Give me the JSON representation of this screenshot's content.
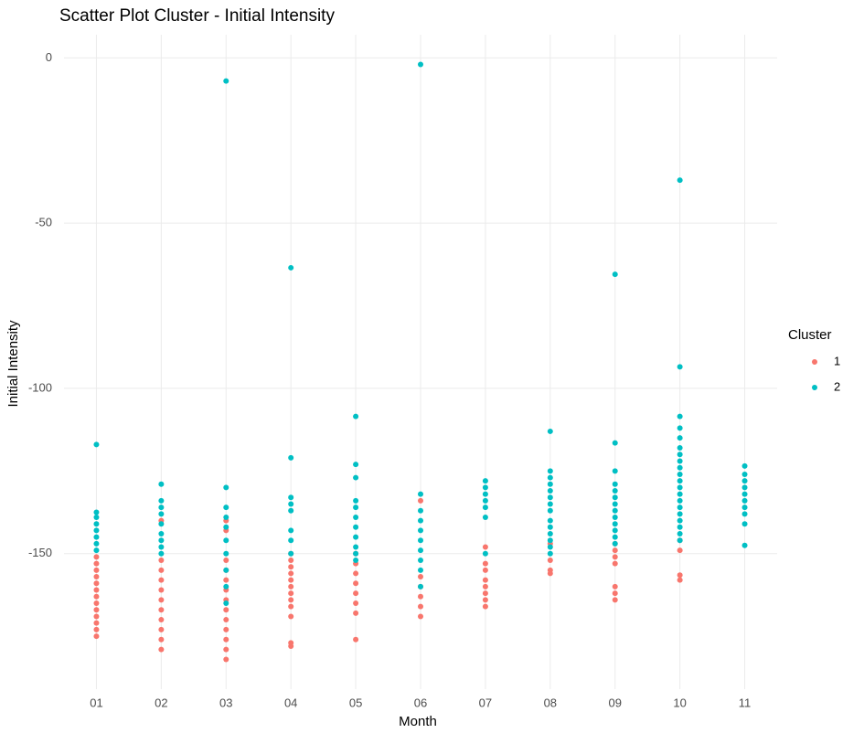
{
  "chart_data": {
    "type": "scatter",
    "title": "Scatter Plot Cluster - Initial Intensity",
    "x_label": "Month",
    "y_label": "Initial Intensity",
    "legend_title": "Cluster",
    "legend_position": "right",
    "grid": true,
    "categories": [
      "01",
      "02",
      "03",
      "04",
      "05",
      "06",
      "07",
      "08",
      "09",
      "10",
      "11"
    ],
    "ylim": [
      -191,
      7
    ],
    "yticks": [
      0,
      -50,
      -100,
      -150
    ],
    "series": [
      {
        "name": "1",
        "color": "#F8766D",
        "x": [
          "01",
          "01",
          "01",
          "01",
          "01",
          "01",
          "01",
          "01",
          "01",
          "01",
          "01",
          "01",
          "01",
          "02",
          "02",
          "02",
          "02",
          "02",
          "02",
          "02",
          "02",
          "02",
          "02",
          "02",
          "03",
          "03",
          "03",
          "03",
          "03",
          "03",
          "03",
          "03",
          "03",
          "03",
          "03",
          "03",
          "03",
          "04",
          "04",
          "04",
          "04",
          "04",
          "04",
          "04",
          "04",
          "04",
          "04",
          "04",
          "04",
          "05",
          "05",
          "05",
          "05",
          "05",
          "05",
          "05",
          "05",
          "06",
          "06",
          "06",
          "06",
          "06",
          "06",
          "07",
          "07",
          "07",
          "07",
          "07",
          "07",
          "07",
          "07",
          "08",
          "08",
          "08",
          "08",
          "09",
          "09",
          "09",
          "09",
          "09",
          "09",
          "09",
          "10",
          "10",
          "10",
          "10"
        ],
        "values": [
          -151,
          -153,
          -155,
          -157,
          -159,
          -161,
          -163,
          -165,
          -167,
          -169,
          -171,
          -173,
          -175,
          -140,
          -152,
          -155,
          -158,
          -161,
          -164,
          -167,
          -170,
          -173,
          -176,
          -179,
          -140,
          -143,
          -152,
          -155,
          -158,
          -161,
          -164,
          -167,
          -170,
          -173,
          -176,
          -179,
          -182,
          -150,
          -152,
          -154,
          -156,
          -158,
          -160,
          -162,
          -164,
          -166,
          -169,
          -177,
          -178,
          -150,
          -153,
          -156,
          -159,
          -162,
          -165,
          -168,
          -176,
          -134,
          -157,
          -160,
          -163,
          -166,
          -169,
          -148,
          -153,
          -155,
          -158,
          -160,
          -162,
          -164,
          -166,
          -147,
          -152,
          -155,
          -156,
          -147,
          -149,
          -151,
          -153,
          -160,
          -162,
          -164,
          -146,
          -149,
          -156.5,
          -158
        ]
      },
      {
        "name": "2",
        "color": "#00BFC4",
        "x": [
          "01",
          "01",
          "01",
          "01",
          "01",
          "01",
          "01",
          "01",
          "02",
          "02",
          "02",
          "02",
          "02",
          "02",
          "02",
          "02",
          "02",
          "03",
          "03",
          "03",
          "03",
          "03",
          "03",
          "03",
          "03",
          "03",
          "03",
          "04",
          "04",
          "04",
          "04",
          "04",
          "04",
          "04",
          "04",
          "05",
          "05",
          "05",
          "05",
          "05",
          "05",
          "05",
          "05",
          "05",
          "05",
          "05",
          "06",
          "06",
          "06",
          "06",
          "06",
          "06",
          "06",
          "06",
          "06",
          "06",
          "07",
          "07",
          "07",
          "07",
          "07",
          "07",
          "07",
          "08",
          "08",
          "08",
          "08",
          "08",
          "08",
          "08",
          "08",
          "08",
          "08",
          "08",
          "08",
          "08",
          "08",
          "09",
          "09",
          "09",
          "09",
          "09",
          "09",
          "09",
          "09",
          "09",
          "09",
          "09",
          "09",
          "09",
          "10",
          "10",
          "10",
          "10",
          "10",
          "10",
          "10",
          "10",
          "10",
          "10",
          "10",
          "10",
          "10",
          "10",
          "10",
          "10",
          "10",
          "10",
          "10",
          "10",
          "11",
          "11",
          "11",
          "11",
          "11",
          "11",
          "11",
          "11",
          "11",
          "11"
        ],
        "values": [
          -117,
          -137.5,
          -139,
          -141,
          -143,
          -145,
          -147,
          -149,
          -129,
          -134,
          -136,
          -138,
          -141,
          -144,
          -146,
          -148,
          -150,
          -7,
          -130,
          -136,
          -139,
          -142,
          -146,
          -150,
          -155,
          -160,
          -165,
          -63.5,
          -121,
          -133,
          -135,
          -137,
          -143,
          -146,
          -150,
          -108.5,
          -123,
          -127,
          -134,
          -136,
          -139,
          -142,
          -145,
          -148,
          -150,
          -152,
          -2,
          -132,
          -137,
          -140,
          -143,
          -146,
          -149,
          -152,
          -155,
          -160,
          -128,
          -130,
          -132,
          -134,
          -136,
          -139,
          -150,
          -113,
          -125,
          -127,
          -129,
          -131,
          -133,
          -135,
          -137,
          -140,
          -142,
          -144,
          -146,
          -148,
          -150,
          -65.5,
          -116.5,
          -125,
          -129,
          -131,
          -133,
          -135,
          -137,
          -139,
          -141,
          -143,
          -145,
          -147,
          -37,
          -93.5,
          -108.5,
          -112,
          -115,
          -118,
          -120,
          -122,
          -124,
          -126,
          -128,
          -130,
          -132,
          -134,
          -136,
          -138,
          -140,
          -142,
          -144,
          -146,
          -123.5,
          -126,
          -128,
          -130,
          -132,
          -134,
          -136,
          -138,
          -141,
          -147.5
        ]
      }
    ]
  }
}
